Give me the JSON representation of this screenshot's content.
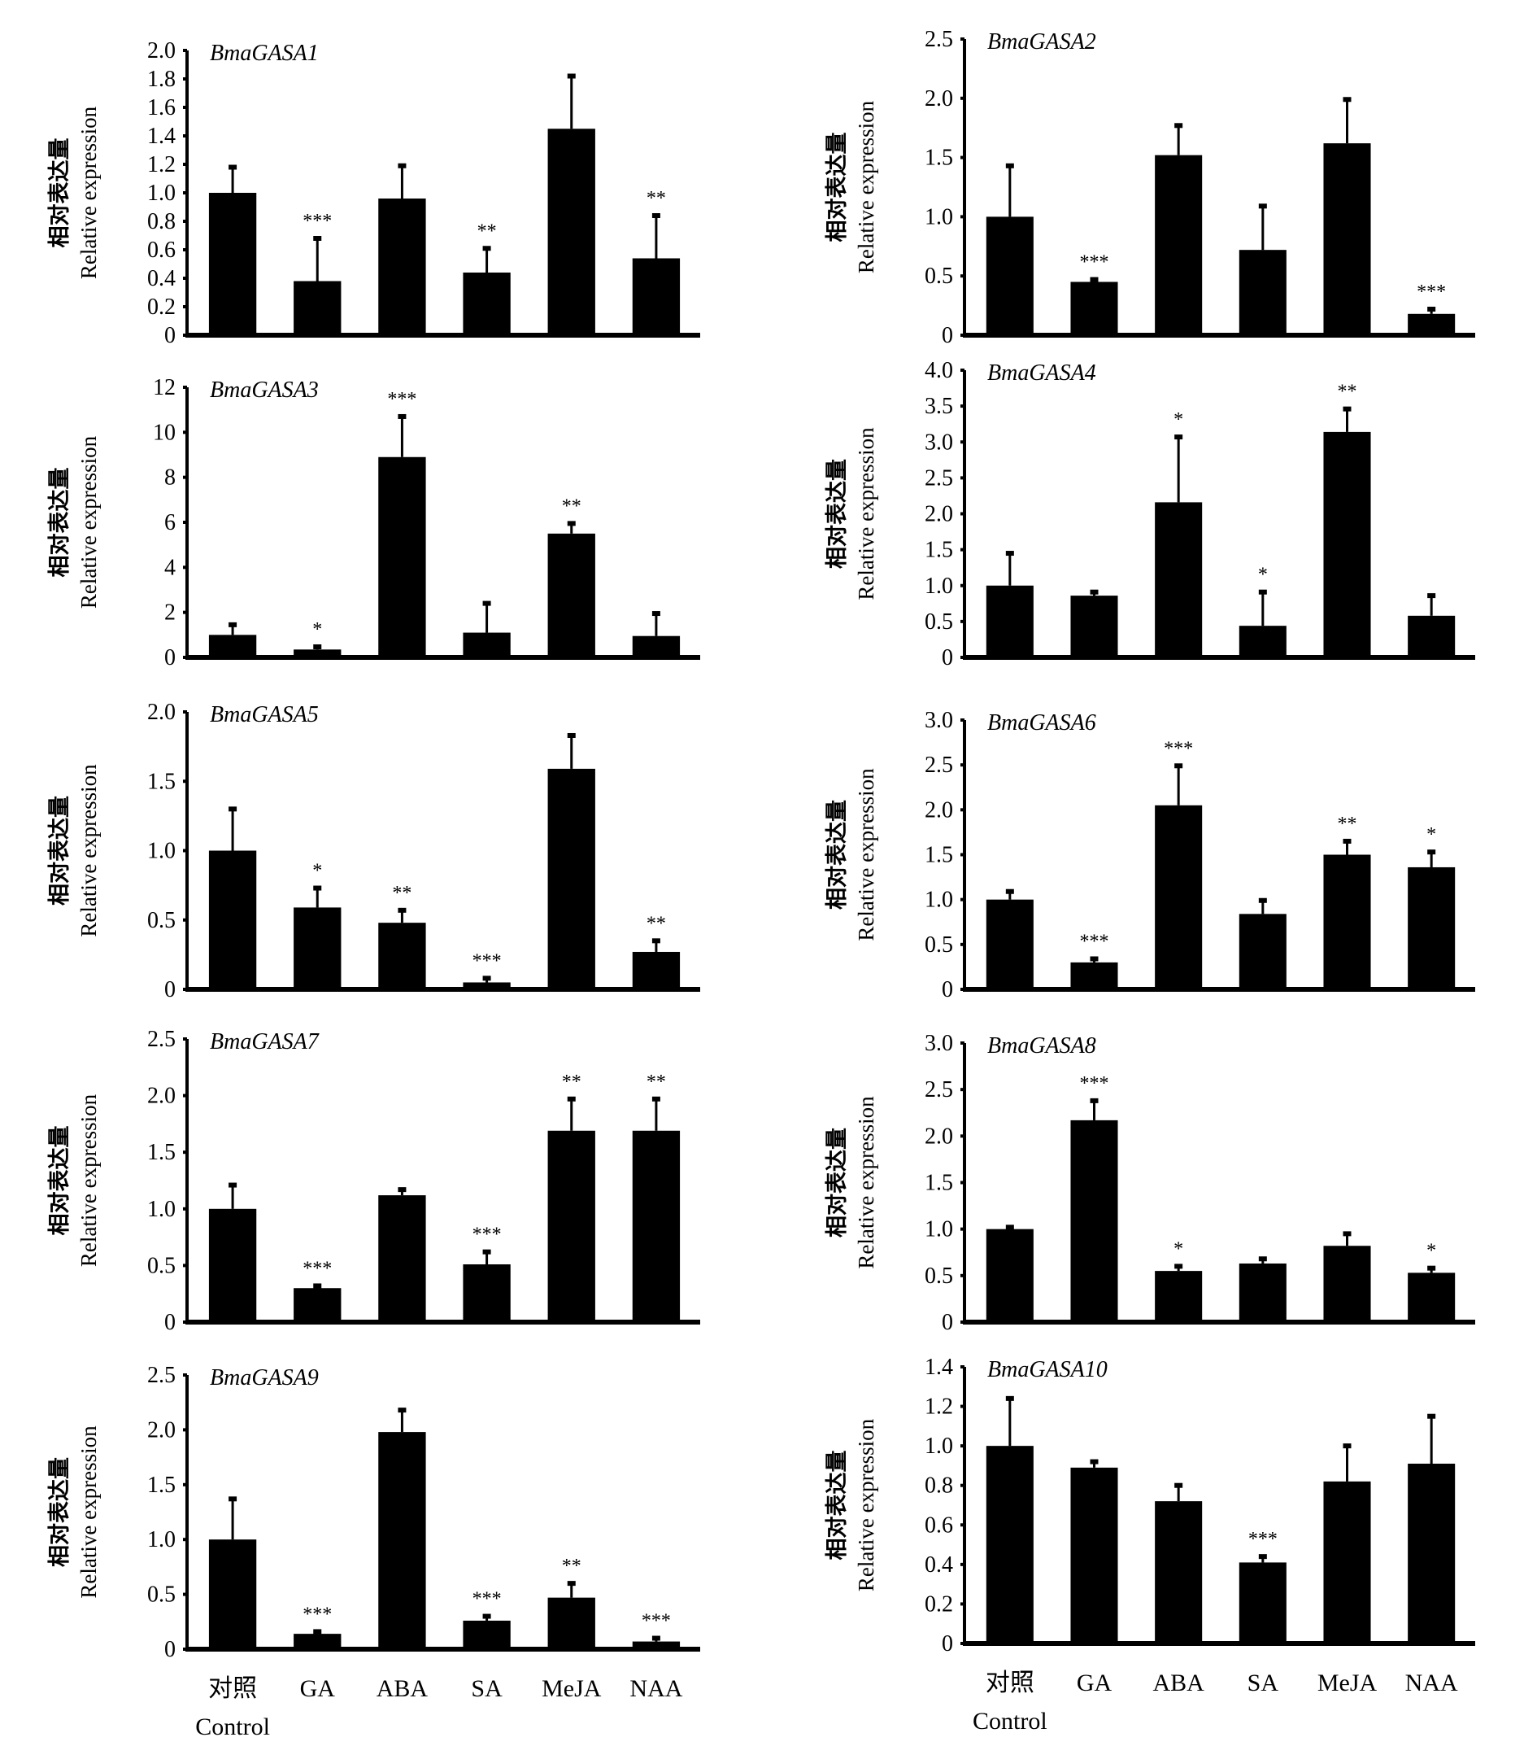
{
  "figure": {
    "categories": [
      "对照",
      "GA",
      "ABA",
      "SA",
      "MeJA",
      "NAA"
    ],
    "control_subtitle": "Control",
    "ylabel_cn": "相对表达量",
    "ylabel_en": "Relative expression",
    "bar_color": "#000000"
  },
  "chart_data": [
    {
      "type": "bar",
      "title": "BmaGASA1",
      "xlabel": "",
      "ylabel": "相对表达量 Relative expression",
      "categories": [
        "对照",
        "GA",
        "ABA",
        "SA",
        "MeJA",
        "NAA"
      ],
      "ylim": [
        0,
        2.0
      ],
      "yticks": [
        "0",
        "0.2",
        "0.4",
        "0.6",
        "0.8",
        "1.0",
        "1.2",
        "1.4",
        "1.6",
        "1.8",
        "2.0"
      ],
      "tick_values": [
        0,
        0.2,
        0.4,
        0.6,
        0.8,
        1.0,
        1.2,
        1.4,
        1.6,
        1.8,
        2.0
      ],
      "values": [
        1.0,
        0.38,
        0.96,
        0.44,
        1.45,
        0.54
      ],
      "errors": [
        0.18,
        0.3,
        0.23,
        0.17,
        0.37,
        0.3
      ],
      "significance": [
        "",
        "***",
        "",
        "**",
        "",
        "**"
      ]
    },
    {
      "type": "bar",
      "title": "BmaGASA2",
      "xlabel": "",
      "ylabel": "相对表达量 Relative expression",
      "categories": [
        "对照",
        "GA",
        "ABA",
        "SA",
        "MeJA",
        "NAA"
      ],
      "ylim": [
        0,
        2.5
      ],
      "yticks": [
        "0",
        "0.5",
        "1.0",
        "1.5",
        "2.0",
        "2.5"
      ],
      "tick_values": [
        0,
        0.5,
        1.0,
        1.5,
        2.0,
        2.5
      ],
      "values": [
        1.0,
        0.45,
        1.52,
        0.72,
        1.62,
        0.18
      ],
      "errors": [
        0.43,
        0.02,
        0.25,
        0.37,
        0.37,
        0.04
      ],
      "significance": [
        "",
        "***",
        "",
        "",
        "",
        "***"
      ]
    },
    {
      "type": "bar",
      "title": "BmaGASA3",
      "xlabel": "",
      "ylabel": "相对表达量 Relative expression",
      "categories": [
        "对照",
        "GA",
        "ABA",
        "SA",
        "MeJA",
        "NAA"
      ],
      "ylim": [
        0,
        12
      ],
      "yticks": [
        "0",
        "2",
        "4",
        "6",
        "8",
        "10",
        "12"
      ],
      "tick_values": [
        0,
        2,
        4,
        6,
        8,
        10,
        12
      ],
      "values": [
        1.0,
        0.35,
        8.9,
        1.1,
        5.5,
        0.95
      ],
      "errors": [
        0.45,
        0.12,
        1.8,
        1.3,
        0.45,
        1.0
      ],
      "significance": [
        "",
        "*",
        "***",
        "",
        "**",
        ""
      ]
    },
    {
      "type": "bar",
      "title": "BmaGASA4",
      "xlabel": "",
      "ylabel": "相对表达量 Relative expression",
      "categories": [
        "对照",
        "GA",
        "ABA",
        "SA",
        "MeJA",
        "NAA"
      ],
      "ylim": [
        0,
        4.0
      ],
      "yticks": [
        "0",
        "0.5",
        "1.0",
        "1.5",
        "2.0",
        "2.5",
        "3.0",
        "3.5",
        "4.0"
      ],
      "tick_values": [
        0,
        0.5,
        1.0,
        1.5,
        2.0,
        2.5,
        3.0,
        3.5,
        4.0
      ],
      "values": [
        1.0,
        0.86,
        2.16,
        0.44,
        3.14,
        0.58
      ],
      "errors": [
        0.45,
        0.05,
        0.91,
        0.47,
        0.32,
        0.28
      ],
      "significance": [
        "",
        "",
        "*",
        "*",
        "**",
        ""
      ]
    },
    {
      "type": "bar",
      "title": "BmaGASA5",
      "xlabel": "",
      "ylabel": "相对表达量 Relative expression",
      "categories": [
        "对照",
        "GA",
        "ABA",
        "SA",
        "MeJA",
        "NAA"
      ],
      "ylim": [
        0,
        2.0
      ],
      "yticks": [
        "0",
        "0.5",
        "1.0",
        "1.5",
        "2.0"
      ],
      "tick_values": [
        0,
        0.5,
        1.0,
        1.5,
        2.0
      ],
      "values": [
        1.0,
        0.59,
        0.48,
        0.05,
        1.59,
        0.27
      ],
      "errors": [
        0.3,
        0.14,
        0.09,
        0.03,
        0.24,
        0.08
      ],
      "significance": [
        "",
        "*",
        "**",
        "***",
        "",
        "**"
      ]
    },
    {
      "type": "bar",
      "title": "BmaGASA6",
      "xlabel": "",
      "ylabel": "相对表达量 Relative expression",
      "categories": [
        "对照",
        "GA",
        "ABA",
        "SA",
        "MeJA",
        "NAA"
      ],
      "ylim": [
        0,
        3.0
      ],
      "yticks": [
        "0",
        "0.5",
        "1.0",
        "1.5",
        "2.0",
        "2.5",
        "3.0"
      ],
      "tick_values": [
        0,
        0.5,
        1.0,
        1.5,
        2.0,
        2.5,
        3.0
      ],
      "values": [
        1.0,
        0.3,
        2.05,
        0.84,
        1.5,
        1.36
      ],
      "errors": [
        0.09,
        0.04,
        0.44,
        0.15,
        0.15,
        0.17
      ],
      "significance": [
        "",
        "***",
        "***",
        "",
        "**",
        "*"
      ]
    },
    {
      "type": "bar",
      "title": "BmaGASA7",
      "xlabel": "",
      "ylabel": "相对表达量 Relative expression",
      "categories": [
        "对照",
        "GA",
        "ABA",
        "SA",
        "MeJA",
        "NAA"
      ],
      "ylim": [
        0,
        2.5
      ],
      "yticks": [
        "0",
        "0.5",
        "1.0",
        "1.5",
        "2.0",
        "2.5"
      ],
      "tick_values": [
        0,
        0.5,
        1.0,
        1.5,
        2.0,
        2.5
      ],
      "values": [
        1.0,
        0.3,
        1.12,
        0.51,
        1.69,
        1.69
      ],
      "errors": [
        0.21,
        0.02,
        0.05,
        0.11,
        0.28,
        0.28
      ],
      "significance": [
        "",
        "***",
        "",
        "***",
        "**",
        "**"
      ]
    },
    {
      "type": "bar",
      "title": "BmaGASA8",
      "xlabel": "",
      "ylabel": "相对表达量 Relative expression",
      "categories": [
        "对照",
        "GA",
        "ABA",
        "SA",
        "MeJA",
        "NAA"
      ],
      "ylim": [
        0,
        3.0
      ],
      "yticks": [
        "0",
        "0.5",
        "1.0",
        "1.5",
        "2.0",
        "2.5",
        "3.0"
      ],
      "tick_values": [
        0,
        0.5,
        1.0,
        1.5,
        2.0,
        2.5,
        3.0
      ],
      "values": [
        1.0,
        2.17,
        0.55,
        0.63,
        0.82,
        0.53
      ],
      "errors": [
        0.02,
        0.21,
        0.05,
        0.05,
        0.13,
        0.05
      ],
      "significance": [
        "",
        "***",
        "*",
        "",
        "",
        "*"
      ]
    },
    {
      "type": "bar",
      "title": "BmaGASA9",
      "xlabel": "",
      "ylabel": "相对表达量 Relative expression",
      "categories": [
        "对照",
        "GA",
        "ABA",
        "SA",
        "MeJA",
        "NAA"
      ],
      "ylim": [
        0,
        2.5
      ],
      "yticks": [
        "0",
        "0.5",
        "1.0",
        "1.5",
        "2.0",
        "2.5"
      ],
      "tick_values": [
        0,
        0.5,
        1.0,
        1.5,
        2.0,
        2.5
      ],
      "values": [
        1.0,
        0.14,
        1.98,
        0.26,
        0.47,
        0.07
      ],
      "errors": [
        0.37,
        0.02,
        0.2,
        0.04,
        0.13,
        0.03
      ],
      "significance": [
        "",
        "***",
        "",
        "***",
        "**",
        "***"
      ]
    },
    {
      "type": "bar",
      "title": "BmaGASA10",
      "xlabel": "",
      "ylabel": "相对表达量 Relative expression",
      "categories": [
        "对照",
        "GA",
        "ABA",
        "SA",
        "MeJA",
        "NAA"
      ],
      "ylim": [
        0,
        1.4
      ],
      "yticks": [
        "0",
        "0.2",
        "0.4",
        "0.6",
        "0.8",
        "1.0",
        "1.2",
        "1.4"
      ],
      "tick_values": [
        0,
        0.2,
        0.4,
        0.6,
        0.8,
        1.0,
        1.2,
        1.4
      ],
      "values": [
        1.0,
        0.89,
        0.72,
        0.41,
        0.82,
        0.91
      ],
      "errors": [
        0.24,
        0.03,
        0.08,
        0.03,
        0.18,
        0.24
      ],
      "significance": [
        "",
        "",
        "",
        "***",
        "",
        ""
      ]
    }
  ]
}
